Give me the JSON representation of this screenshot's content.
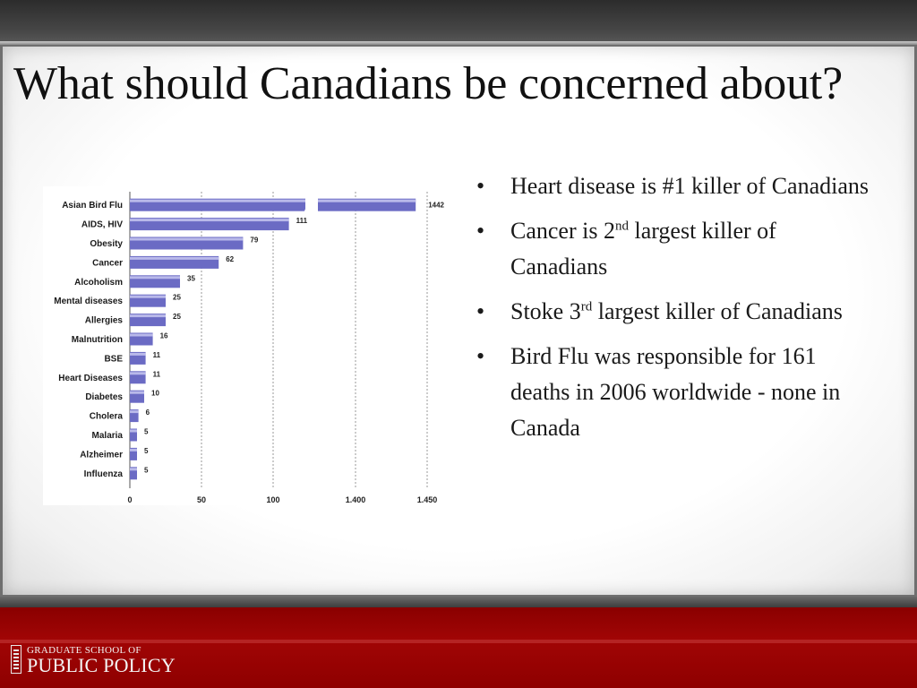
{
  "slide": {
    "title": "What should Canadians be concerned about?",
    "bullets": [
      {
        "text": "Heart disease is #1 killer of Canadians"
      },
      {
        "text": "Cancer is  2",
        "sup": "nd",
        "text_after": "  largest killer of Canadians"
      },
      {
        "text": "Stoke 3",
        "sup": "rd",
        "text_after": " largest killer of Canadians"
      },
      {
        "text": "Bird Flu was responsible for 161 deaths in 2006 worldwide - none in Canada"
      }
    ],
    "bullet_symbol": "•",
    "logo": {
      "line1": "GRADUATE SCHOOL OF",
      "line2": "PUBLIC POLICY"
    }
  },
  "colors": {
    "bar": "#6b6bc4",
    "bar_highlight": "#b9b9ea",
    "footer_red": "#a10505"
  },
  "chart_data": {
    "type": "bar",
    "orientation": "horizontal",
    "title": "",
    "xlabel": "",
    "ylabel": "",
    "categories": [
      "Asian Bird Flu",
      "AIDS, HIV",
      "Obesity",
      "Cancer",
      "Alcoholism",
      "Mental diseases",
      "Allergies",
      "Malnutrition",
      "BSE",
      "Heart Diseases",
      "Diabetes",
      "Cholera",
      "Malaria",
      "Alzheimer",
      "Influenza"
    ],
    "values": [
      1442,
      111,
      79,
      62,
      35,
      25,
      25,
      16,
      11,
      11,
      10,
      6,
      5,
      5,
      5
    ],
    "value_labels": [
      "1442",
      "111",
      "79",
      "62",
      "35",
      "25",
      "25",
      "16",
      "11",
      "11",
      "10",
      "6",
      "5",
      "5",
      "5"
    ],
    "broken_axis": {
      "segments": [
        [
          0,
          125
        ],
        [
          1375,
          1475
        ]
      ]
    },
    "ticks": [
      0,
      50,
      100,
      1400,
      1450
    ],
    "tick_labels": [
      "0",
      "50",
      "100",
      "1.400",
      "1.450"
    ],
    "grid": true
  }
}
